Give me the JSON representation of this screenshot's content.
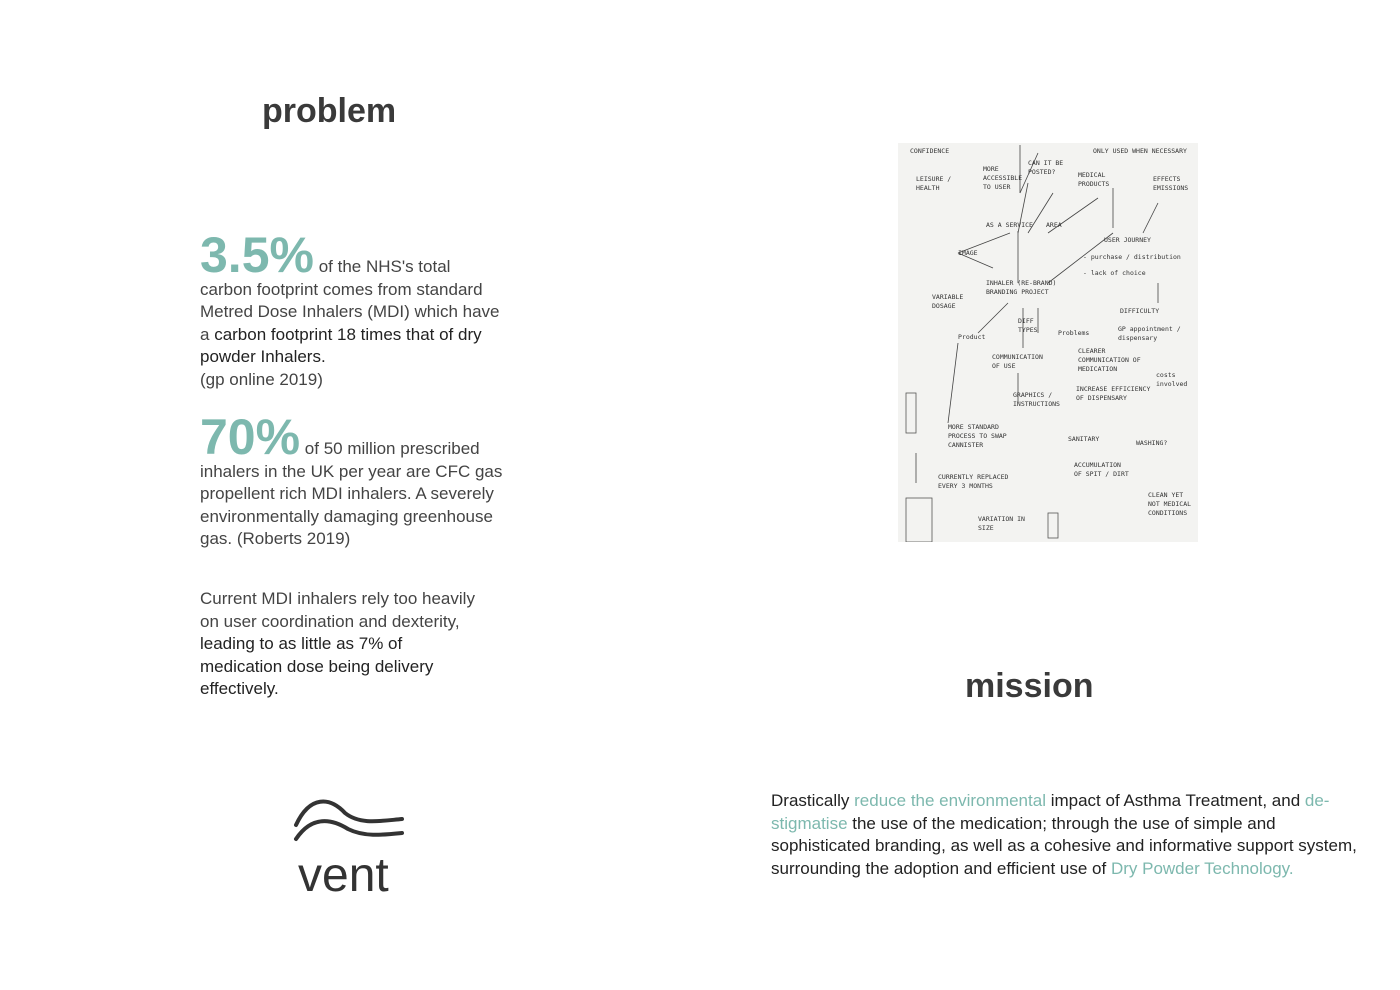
{
  "problem": {
    "title": "problem",
    "stats": [
      {
        "figure": "3.5%",
        "segments": [
          " of the NHS's total carbon footprint comes from standard Metred Dose Inhalers (MDI) which have a ",
          "carbon footprint 18 times that of dry powder Inhalers.",
          "(gp online 2019)"
        ]
      },
      {
        "figure": "70%",
        "segments": [
          " of  50 million prescribed inhalers in the UK per year are CFC gas propellent rich MDI inhalers. A severely environmentally damaging greenhouse gas. (Roberts 2019)"
        ]
      }
    ],
    "note": [
      "Current MDI inhalers rely too heavily on user coordination and dexterity, ",
      "leading to as little as 7% of medication dose being delivery effectively."
    ]
  },
  "logo": "vent",
  "sketch": {
    "labels": [
      "CONFIDENCE",
      "LEISURE / HEALTH",
      "MORE ACCESSIBLE TO USER",
      "CAN IT BE POSTED?",
      "ONLY USED WHEN NECESSARY",
      "MEDICAL PRODUCTS",
      "EFFECTS EMISSIONS",
      "AS A SERVICE",
      "AREA",
      "USER JOURNEY",
      "IMAGE",
      "- purchase / distribution",
      "- lack of choice",
      "INHALER (RE-BRAND) BRANDING PROJECT",
      "VARIABLE DOSAGE",
      "DIFFICULTY",
      "Product",
      "DIFF TYPES",
      "Problems",
      "GP appointment / dispensary",
      "COMMUNICATION OF USE",
      "CLEARER COMMUNICATION OF MEDICATION",
      "costs involved",
      "GRAPHICS / INSTRUCTIONS",
      "INCREASE EFFICIENCY OF DISPENSARY",
      "MORE STANDARD PROCESS TO SWAP CANNISTER",
      "SANITARY",
      "WASHING?",
      "ACCUMULATION OF SPIT / DIRT",
      "CURRENTLY REPLACED EVERY 3 MONTHS",
      "CLEAN YET NOT MEDICAL CONDITIONS",
      "VARIATION IN SIZE"
    ]
  },
  "mission": {
    "title": "mission",
    "segments": [
      "Drastically ",
      "reduce the environmental",
      " impact of Asthma Treatment, and ",
      "de-stigmatise",
      " the use of the medication; through the use of simple and sophisticated branding, as well as a cohesive and informative support system, surrounding the adoption and efficient use of ",
      "Dry Powder Technology."
    ]
  }
}
